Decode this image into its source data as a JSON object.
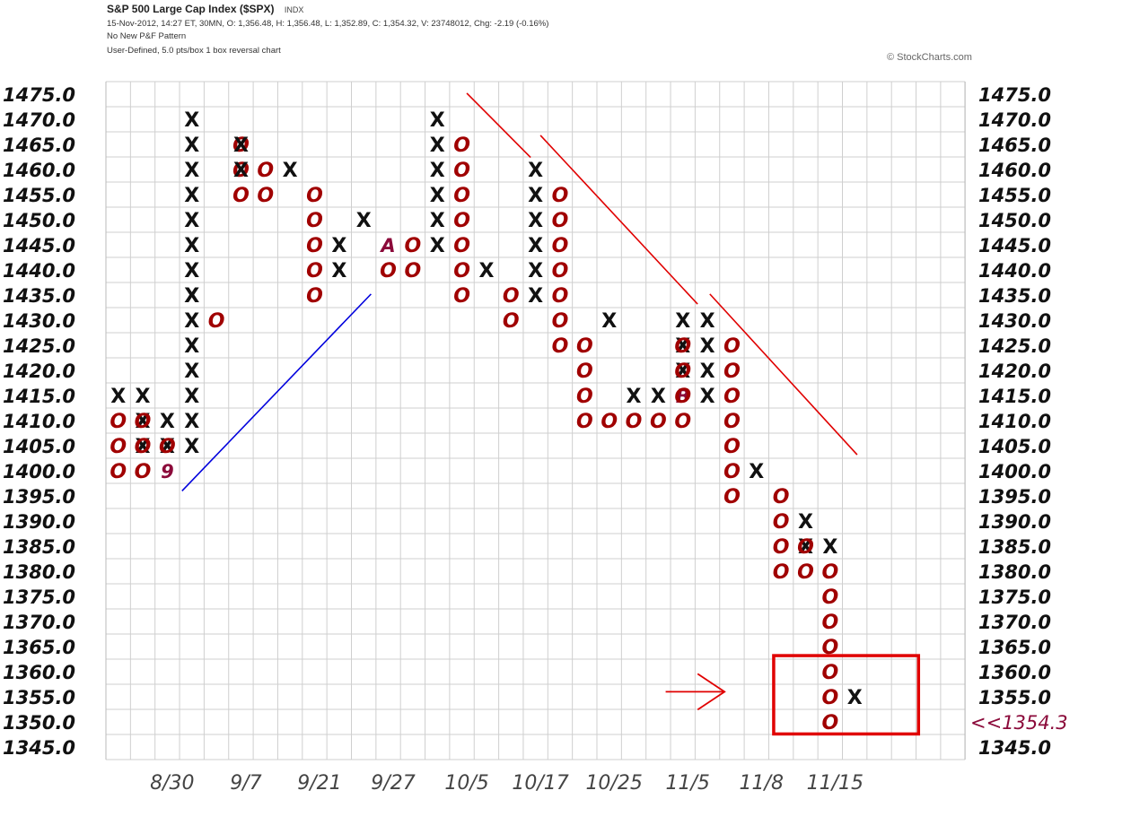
{
  "header": {
    "title": "S&P 500 Large Cap Index ($SPX)",
    "exchange": "INDX",
    "quote": "15-Nov-2012, 14:27 ET, 30MN, O: 1,356.48, H: 1,356.48, L: 1,352.89, C: 1,354.32, V: 23748012, Chg: -2.19 (-0.16%)",
    "pattern": "No New P&F Pattern",
    "settings": "User-Defined, 5.0 pts/box 1 box reversal chart"
  },
  "copyright": "© StockCharts.com",
  "colors": {
    "x": "#111111",
    "o": "#a00000",
    "month": "#8b0a3a",
    "trend_up": "#0000dd",
    "trend_down": "#e00000",
    "highlight": "#e00000"
  },
  "chart_data": {
    "type": "point-and-figure",
    "box_size": 5,
    "reversal": 1,
    "ylim": [
      1345,
      1475
    ],
    "grid": true,
    "y_ticks_left": [
      "1475.0",
      "1470.0",
      "1465.0",
      "1460.0",
      "1455.0",
      "1450.0",
      "1445.0",
      "1440.0",
      "1435.0",
      "1430.0",
      "1425.0",
      "1420.0",
      "1415.0",
      "1410.0",
      "1405.0",
      "1400.0",
      "1395.0",
      "1390.0",
      "1385.0",
      "1380.0",
      "1375.0",
      "1370.0",
      "1365.0",
      "1360.0",
      "1355.0",
      "1350.0",
      "1345.0"
    ],
    "y_ticks_right": [
      "1475.0",
      "1470.0",
      "1465.0",
      "1460.0",
      "1455.0",
      "1450.0",
      "1445.0",
      "1440.0",
      "1435.0",
      "1430.0",
      "1425.0",
      "1420.0",
      "1415.0",
      "1410.0",
      "1405.0",
      "1400.0",
      "1395.0",
      "1390.0",
      "1385.0",
      "1380.0",
      "1375.0",
      "1370.0",
      "1365.0",
      "1360.0",
      "1355.0",
      "",
      "1345.0"
    ],
    "current_price_label": "<<1354.3",
    "x_labels": [
      {
        "col": 2.7,
        "label": "8/30"
      },
      {
        "col": 5.7,
        "label": "9/7"
      },
      {
        "col": 8.7,
        "label": "9/21"
      },
      {
        "col": 11.7,
        "label": "9/27"
      },
      {
        "col": 14.7,
        "label": "10/5"
      },
      {
        "col": 17.7,
        "label": "10/17"
      },
      {
        "col": 20.7,
        "label": "10/25"
      },
      {
        "col": 23.7,
        "label": "11/5"
      },
      {
        "col": 26.7,
        "label": "11/8"
      },
      {
        "col": 29.7,
        "label": "11/15"
      }
    ],
    "columns": [
      {
        "type": "X",
        "boxes": [
          1415
        ]
      },
      {
        "type": "O",
        "boxes": [
          1410,
          1405,
          1400
        ]
      },
      {
        "type": "X",
        "boxes": [
          1405,
          1410,
          1415
        ]
      },
      {
        "type": "O",
        "boxes": [
          1410,
          1405,
          1400
        ]
      },
      {
        "type": "X",
        "boxes": [
          1405,
          1410
        ]
      },
      {
        "type": "O",
        "boxes": [
          1405
        ],
        "marks": {
          "1400": "9"
        }
      },
      {
        "type": "X",
        "boxes": [
          1405,
          1410,
          1415,
          1420,
          1425,
          1430,
          1435
        ]
      },
      {
        "type": "X",
        "boxes": [
          1435,
          1440,
          1445,
          1450,
          1455,
          1460,
          1465,
          1470
        ]
      },
      {
        "type": "O",
        "boxes": [
          1430
        ]
      },
      {
        "type": "O",
        "boxes": [
          1465,
          1460,
          1455
        ]
      },
      {
        "type": "X",
        "boxes": [
          1460,
          1465
        ]
      },
      {
        "type": "O",
        "boxes": [
          1460,
          1455
        ]
      },
      {
        "type": "X",
        "boxes": [
          1460
        ]
      },
      {
        "type": "O",
        "boxes": [
          1455,
          1450,
          1445,
          1440,
          1435
        ]
      },
      {
        "type": "X",
        "boxes": [
          1440,
          1445
        ]
      },
      {
        "type": "X",
        "boxes": [
          1450
        ]
      },
      {
        "type": "O",
        "boxes": [
          1440
        ],
        "marks": {
          "1445": "A"
        }
      },
      {
        "type": "O",
        "boxes": [
          1445,
          1440
        ]
      },
      {
        "type": "X",
        "boxes": [
          1445,
          1450,
          1455,
          1460,
          1465,
          1470
        ]
      },
      {
        "type": "O",
        "boxes": [
          1465,
          1460,
          1455,
          1450,
          1445,
          1440,
          1435
        ]
      },
      {
        "type": "X",
        "boxes": [
          1440
        ]
      },
      {
        "type": "O",
        "boxes": [
          1435,
          1430
        ]
      },
      {
        "type": "X",
        "boxes": [
          1435,
          1440,
          1445,
          1450,
          1455,
          1460
        ]
      },
      {
        "type": "O",
        "boxes": [
          1455,
          1450,
          1445,
          1440,
          1435,
          1430,
          1425
        ]
      },
      {
        "type": "O",
        "boxes": [
          1425,
          1420,
          1415,
          1410
        ]
      },
      {
        "type": "X",
        "boxes": [
          1430
        ]
      },
      {
        "type": "O",
        "boxes": [
          1410
        ]
      },
      {
        "type": "X",
        "boxes": [
          1415
        ]
      },
      {
        "type": "O",
        "boxes": [
          1410
        ]
      },
      {
        "type": "X",
        "boxes": [
          1415
        ]
      },
      {
        "type": "O",
        "boxes": [
          1410
        ]
      },
      {
        "type": "X",
        "boxes": [
          1420,
          1425,
          1430
        ],
        "marks": {
          "1415": "B"
        }
      },
      {
        "type": "O",
        "boxes": [
          1425,
          1420,
          1415,
          1410
        ]
      },
      {
        "type": "X",
        "boxes": [
          1415,
          1420,
          1425,
          1430
        ]
      },
      {
        "type": "O",
        "boxes": [
          1425,
          1420,
          1415,
          1410,
          1405,
          1400,
          1395
        ]
      },
      {
        "type": "X",
        "boxes": [
          1400
        ]
      },
      {
        "type": "O",
        "boxes": [
          1395,
          1390,
          1385,
          1380
        ]
      },
      {
        "type": "X",
        "boxes": [
          1385,
          1390
        ]
      },
      {
        "type": "O",
        "boxes": [
          1385,
          1380
        ]
      },
      {
        "type": "X",
        "boxes": [
          1385
        ]
      },
      {
        "type": "O",
        "boxes": [
          1380,
          1375,
          1370,
          1365,
          1360,
          1355,
          1350
        ]
      },
      {
        "type": "X",
        "boxes": [
          1355
        ]
      }
    ],
    "placement": [
      0,
      0,
      1,
      1,
      2,
      2,
      3,
      3,
      4,
      5,
      5,
      6,
      7,
      8,
      9,
      10,
      11,
      12,
      13,
      14,
      15,
      16,
      17,
      18,
      19,
      20,
      20,
      21,
      21,
      22,
      22,
      23,
      23,
      24,
      25,
      26,
      27,
      28,
      28,
      29,
      29,
      30
    ],
    "trendlines": [
      {
        "color": "blue",
        "from": [
          3.1,
          1396.0
        ],
        "to": [
          10.8,
          1435.2
        ]
      },
      {
        "color": "red",
        "from": [
          14.7,
          1475.2
        ],
        "to": [
          17.3,
          1462.4
        ]
      },
      {
        "color": "red",
        "from": [
          17.7,
          1466.8
        ],
        "to": [
          24.1,
          1433.2
        ]
      },
      {
        "color": "red",
        "from": [
          24.6,
          1435.2
        ],
        "to": [
          30.6,
          1403.2
        ]
      }
    ],
    "highlight_box": {
      "from": [
        27.2,
        1363.2
      ],
      "to": [
        33.1,
        1347.6
      ]
    },
    "arrow": {
      "from": [
        22.8,
        1356.0
      ],
      "to": [
        25.2,
        1356.0
      ]
    }
  }
}
